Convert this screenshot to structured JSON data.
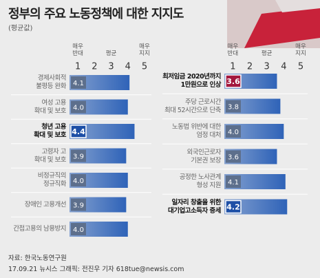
{
  "title": "정부의 주요 노동정책에 대한 지지도",
  "subtitle": "(평균값)",
  "source": "자료: 한국노동연구원",
  "credit": "17.09.21 뉴시스 그래픽: 전진우 기자 618tue@newsis.com",
  "chart_data": [
    {
      "type": "bar",
      "orientation": "horizontal",
      "scale_labels": [
        "매우\n반대",
        "평균",
        "매우\n지지"
      ],
      "scale_label_at": [
        1,
        3,
        5
      ],
      "categories": [
        "경제사회적\n불평등 완화",
        "여성 고용\n확대 및 보호",
        "청년 고용\n확대 및 보호",
        "고령자 고\n확대 및 보호",
        "비정규직의\n정규직화",
        "장애인 고용개선",
        "간접고용의 남용방지"
      ],
      "values": [
        4.1,
        4.0,
        4.4,
        3.9,
        4.0,
        3.9,
        4.0
      ],
      "value_labels": [
        "4.1",
        "4.0",
        "4.4",
        "3.9",
        "4.0",
        "3.9",
        "4.0"
      ],
      "color": "#2f63b8",
      "highlights": [
        {
          "index": 2,
          "color": "#1d4fa6"
        }
      ],
      "xlim": [
        0.5,
        5
      ],
      "xticks": [
        1,
        2,
        3,
        4,
        5
      ]
    },
    {
      "type": "bar",
      "orientation": "horizontal",
      "scale_labels": [
        "매우\n반대",
        "평균",
        "매우\n지지"
      ],
      "scale_label_at": [
        1,
        3,
        5
      ],
      "categories": [
        "최저임금 2020년까지\n1만원으로 인상",
        "주당 근로시간\n최대 52시간으로 단축",
        "노동법 위반에 대한\n엄정 대처",
        "외국인근로자\n기본권 보장",
        "공정한 노사관계\n형성 지원",
        "일자리 창출을 위한\n대기업고소득자 증세"
      ],
      "values": [
        3.6,
        3.8,
        4.0,
        3.6,
        4.1,
        4.2
      ],
      "value_labels": [
        "3.6",
        "3.8",
        "4.0",
        "3.6",
        "4.1",
        "4.2"
      ],
      "color": "#2f63b8",
      "highlights": [
        {
          "index": 0,
          "color": "#a3173d"
        },
        {
          "index": 5,
          "color": "#1d4fa6"
        }
      ],
      "xlim": [
        0.5,
        5
      ],
      "xticks": [
        1,
        2,
        3,
        4,
        5
      ]
    }
  ]
}
